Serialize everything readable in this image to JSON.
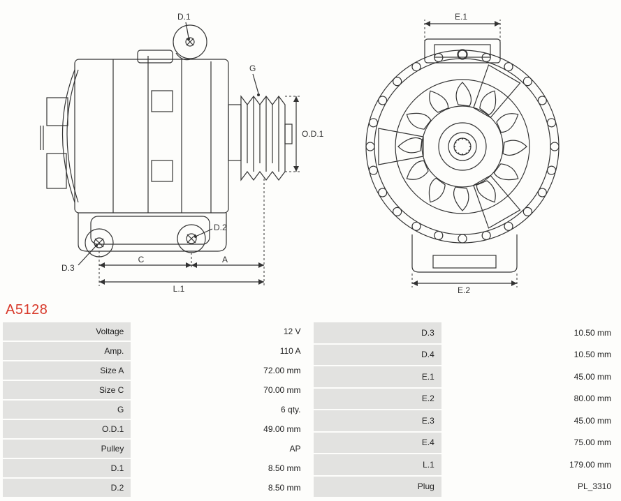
{
  "part_id": "A5128",
  "colors": {
    "accent": "#d83a2b",
    "grid_label_bg": "#e2e2e0",
    "page_bg": "#fdfdfb",
    "line": "#333333"
  },
  "drawing_labels": {
    "side": {
      "D1": "D.1",
      "D2": "D.2",
      "D3": "D.3",
      "G": "G",
      "OD1": "O.D.1",
      "C": "C",
      "A": "A",
      "L1": "L.1"
    },
    "front": {
      "E1": "E.1",
      "E2": "E.2"
    }
  },
  "spec_table_left": [
    {
      "label": "Voltage",
      "value": "12 V"
    },
    {
      "label": "Amp.",
      "value": "110 A"
    },
    {
      "label": "Size A",
      "value": "72.00 mm"
    },
    {
      "label": "Size C",
      "value": "70.00 mm"
    },
    {
      "label": "G",
      "value": "6 qty."
    },
    {
      "label": "O.D.1",
      "value": "49.00 mm"
    },
    {
      "label": "Pulley",
      "value": "AP"
    },
    {
      "label": "D.1",
      "value": "8.50 mm"
    },
    {
      "label": "D.2",
      "value": "8.50 mm"
    }
  ],
  "spec_table_right": [
    {
      "label": "D.3",
      "value": "10.50 mm"
    },
    {
      "label": "D.4",
      "value": "10.50 mm"
    },
    {
      "label": "E.1",
      "value": "45.00 mm"
    },
    {
      "label": "E.2",
      "value": "80.00 mm"
    },
    {
      "label": "E.3",
      "value": "45.00 mm"
    },
    {
      "label": "E.4",
      "value": "75.00 mm"
    },
    {
      "label": "L.1",
      "value": "179.00 mm"
    },
    {
      "label": "Plug",
      "value": "PL_3310"
    }
  ]
}
